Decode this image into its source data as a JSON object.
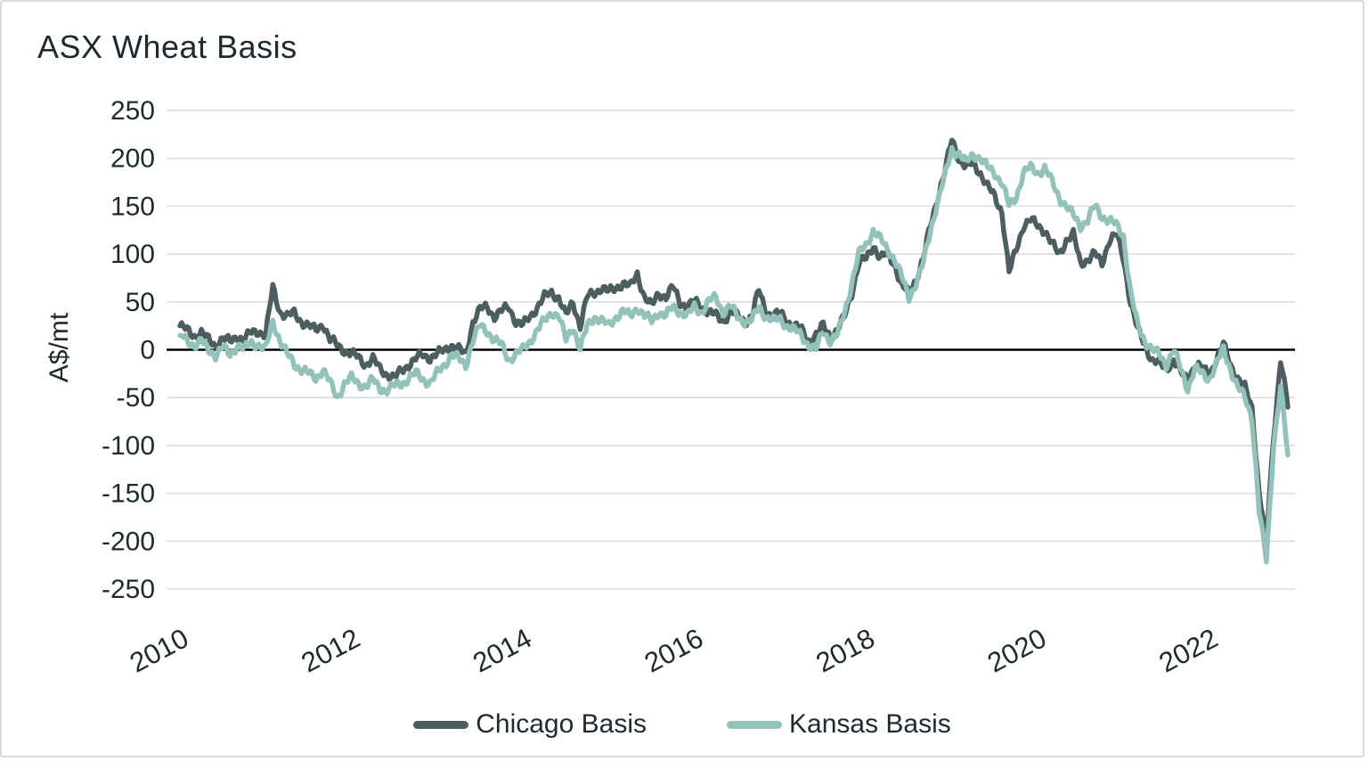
{
  "title": "ASX Wheat Basis",
  "y_axis_label": "A$/mt",
  "colors": {
    "chicago": "#4d5e60",
    "kansas": "#93c2bb",
    "gridline": "#dadada",
    "zero_axis": "#000000",
    "text": "#1d2a2e"
  },
  "chart_data": {
    "type": "line",
    "title": "ASX Wheat Basis",
    "xlabel": "",
    "ylabel": "A$/mt",
    "ylim": [
      -250,
      250
    ],
    "y_ticks": [
      250,
      200,
      150,
      100,
      50,
      0,
      -50,
      -100,
      -150,
      -200,
      -250
    ],
    "x_ticks": [
      2010,
      2012,
      2014,
      2016,
      2018,
      2020,
      2022
    ],
    "x_start": 2010.0,
    "x_interval_years": 0.0833333,
    "grid": "horizontal",
    "legend_position": "bottom-center",
    "series": [
      {
        "name": "Chicago Basis",
        "color": "#4d5e60",
        "values": [
          25,
          20,
          15,
          18,
          10,
          5,
          12,
          8,
          15,
          10,
          18,
          20,
          15,
          65,
          40,
          35,
          38,
          30,
          25,
          20,
          28,
          10,
          5,
          0,
          -5,
          -8,
          -15,
          -10,
          -20,
          -25,
          -30,
          -22,
          -15,
          -10,
          -5,
          -8,
          -5,
          0,
          5,
          0,
          -5,
          30,
          42,
          45,
          35,
          40,
          45,
          30,
          25,
          35,
          45,
          55,
          60,
          55,
          35,
          50,
          25,
          55,
          60,
          65,
          60,
          65,
          70,
          65,
          80,
          55,
          45,
          60,
          55,
          65,
          50,
          45,
          50,
          45,
          40,
          35,
          30,
          40,
          35,
          30,
          35,
          62,
          40,
          35,
          38,
          30,
          25,
          20,
          10,
          15,
          25,
          15,
          20,
          35,
          60,
          90,
          95,
          110,
          95,
          100,
          90,
          65,
          60,
          75,
          95,
          130,
          160,
          185,
          220,
          200,
          190,
          195,
          185,
          170,
          160,
          145,
          80,
          105,
          130,
          135,
          130,
          125,
          110,
          100,
          115,
          120,
          90,
          95,
          100,
          90,
          115,
          120,
          95,
          50,
          20,
          5,
          -10,
          -15,
          -20,
          -10,
          -25,
          -30,
          -15,
          -20,
          -25,
          -10,
          5,
          -15,
          -30,
          -40,
          -60,
          -150,
          -200,
          -90,
          -10,
          -60
        ]
      },
      {
        "name": "Kansas Basis",
        "color": "#93c2bb",
        "values": [
          15,
          10,
          5,
          8,
          0,
          -5,
          2,
          -5,
          5,
          0,
          8,
          5,
          0,
          30,
          10,
          -5,
          -15,
          -20,
          -25,
          -30,
          -20,
          -35,
          -50,
          -35,
          -30,
          -35,
          -38,
          -32,
          -40,
          -42,
          -38,
          -35,
          -30,
          -25,
          -30,
          -35,
          -25,
          -15,
          -5,
          -10,
          -15,
          10,
          25,
          20,
          10,
          5,
          -10,
          -5,
          0,
          10,
          20,
          30,
          40,
          35,
          10,
          25,
          0,
          25,
          35,
          30,
          25,
          35,
          40,
          35,
          45,
          35,
          30,
          40,
          35,
          45,
          40,
          35,
          45,
          40,
          50,
          55,
          40,
          45,
          35,
          30,
          30,
          45,
          35,
          30,
          32,
          25,
          20,
          15,
          5,
          0,
          20,
          10,
          15,
          40,
          70,
          100,
          110,
          125,
          115,
          105,
          95,
          75,
          55,
          70,
          90,
          125,
          155,
          180,
          210,
          205,
          195,
          205,
          200,
          190,
          185,
          175,
          150,
          160,
          185,
          190,
          185,
          190,
          175,
          160,
          150,
          140,
          130,
          135,
          150,
          140,
          135,
          130,
          120,
          60,
          25,
          10,
          0,
          -5,
          -15,
          0,
          -20,
          -40,
          -20,
          -25,
          -30,
          -15,
          0,
          -20,
          -40,
          -50,
          -70,
          -170,
          -220,
          -100,
          -40,
          -110
        ]
      }
    ]
  }
}
